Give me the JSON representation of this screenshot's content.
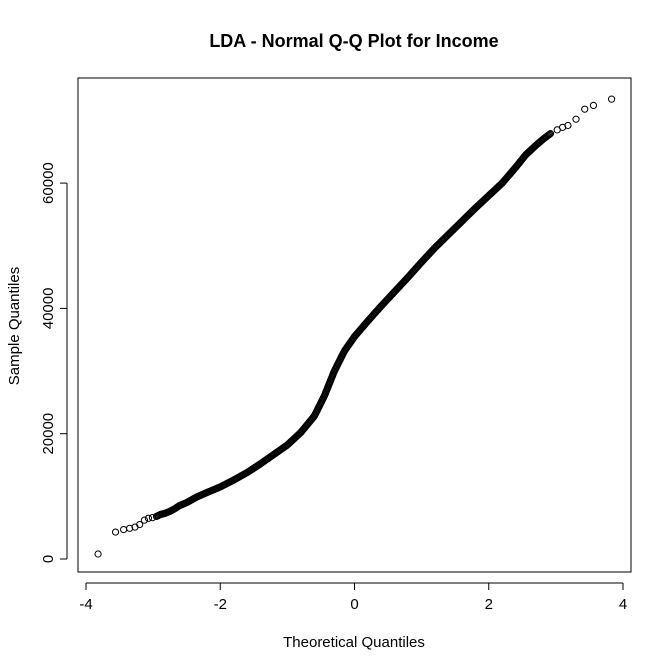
{
  "chart_data": {
    "type": "scatter",
    "title": "LDA - Normal Q-Q Plot for Income",
    "xlabel": "Theoretical Quantiles",
    "ylabel": "Sample Quantiles",
    "xlim": [
      -4,
      4
    ],
    "ylim": [
      0,
      74000
    ],
    "x_ticks": [
      -4,
      -2,
      0,
      2,
      4
    ],
    "y_ticks": [
      0,
      20000,
      40000,
      60000
    ],
    "x_tick_labels": [
      "-4",
      "-2",
      "0",
      "2",
      "4"
    ],
    "y_tick_labels": [
      "0",
      "20000",
      "40000",
      "60000"
    ],
    "grid": false,
    "legend": "none",
    "marker": "open-circle",
    "points": [
      {
        "x": -3.82,
        "y": 800
      },
      {
        "x": -3.56,
        "y": 4300
      },
      {
        "x": -3.44,
        "y": 4700
      },
      {
        "x": -3.35,
        "y": 4900
      },
      {
        "x": -3.27,
        "y": 5100
      },
      {
        "x": -3.2,
        "y": 5500
      },
      {
        "x": -3.13,
        "y": 6200
      },
      {
        "x": -3.07,
        "y": 6500
      },
      {
        "x": -3.01,
        "y": 6600
      },
      {
        "x": -2.95,
        "y": 6800
      },
      {
        "x": -2.89,
        "y": 7100
      },
      {
        "x": -2.82,
        "y": 7300
      },
      {
        "x": -2.75,
        "y": 7600
      },
      {
        "x": -2.68,
        "y": 8000
      },
      {
        "x": -2.61,
        "y": 8500
      },
      {
        "x": -2.5,
        "y": 9000
      },
      {
        "x": -2.35,
        "y": 9900
      },
      {
        "x": -2.2,
        "y": 10600
      },
      {
        "x": -2.0,
        "y": 11500
      },
      {
        "x": -1.8,
        "y": 12600
      },
      {
        "x": -1.6,
        "y": 13800
      },
      {
        "x": -1.4,
        "y": 15200
      },
      {
        "x": -1.2,
        "y": 16700
      },
      {
        "x": -1.0,
        "y": 18200
      },
      {
        "x": -0.8,
        "y": 20200
      },
      {
        "x": -0.6,
        "y": 22800
      },
      {
        "x": -0.45,
        "y": 26000
      },
      {
        "x": -0.3,
        "y": 30000
      },
      {
        "x": -0.15,
        "y": 33200
      },
      {
        "x": 0.0,
        "y": 35500
      },
      {
        "x": 0.2,
        "y": 38000
      },
      {
        "x": 0.4,
        "y": 40400
      },
      {
        "x": 0.6,
        "y": 42700
      },
      {
        "x": 0.8,
        "y": 45000
      },
      {
        "x": 1.0,
        "y": 47400
      },
      {
        "x": 1.2,
        "y": 49700
      },
      {
        "x": 1.4,
        "y": 51800
      },
      {
        "x": 1.6,
        "y": 53900
      },
      {
        "x": 1.8,
        "y": 56000
      },
      {
        "x": 2.0,
        "y": 58000
      },
      {
        "x": 2.2,
        "y": 60000
      },
      {
        "x": 2.4,
        "y": 62500
      },
      {
        "x": 2.55,
        "y": 64500
      },
      {
        "x": 2.7,
        "y": 66000
      },
      {
        "x": 2.82,
        "y": 67100
      },
      {
        "x": 2.92,
        "y": 67900
      },
      {
        "x": 3.02,
        "y": 68500
      },
      {
        "x": 3.1,
        "y": 68900
      },
      {
        "x": 3.18,
        "y": 69200
      },
      {
        "x": 3.3,
        "y": 70200
      },
      {
        "x": 3.43,
        "y": 71800
      },
      {
        "x": 3.56,
        "y": 72400
      },
      {
        "x": 3.83,
        "y": 73400
      }
    ]
  }
}
